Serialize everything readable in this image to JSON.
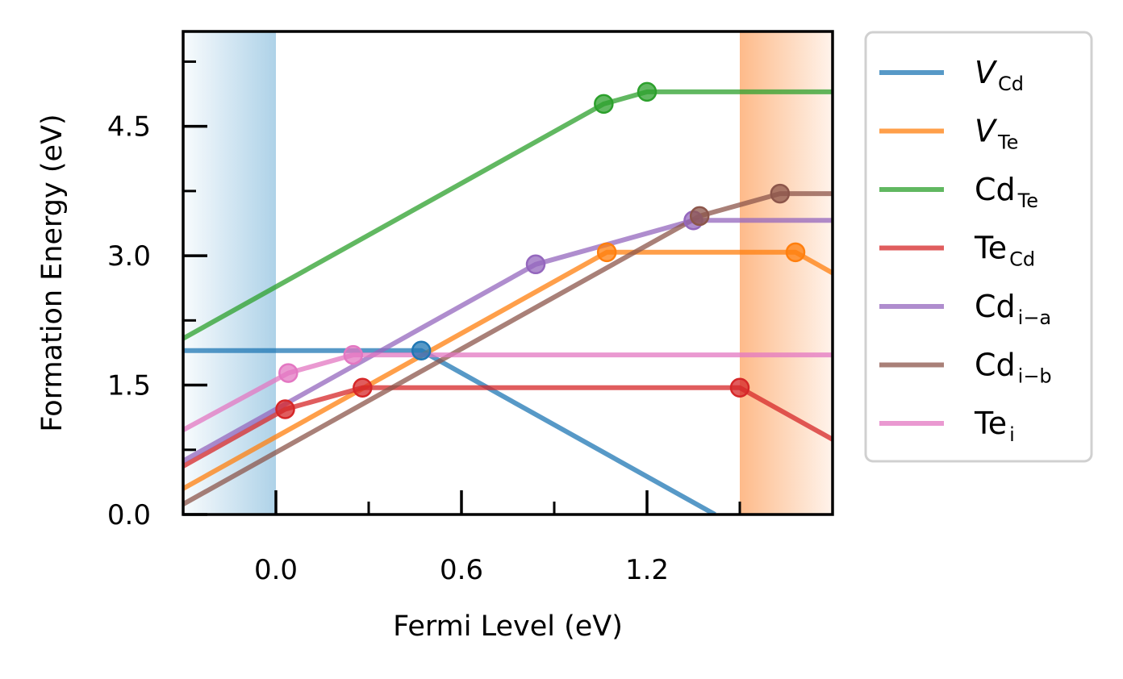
{
  "chart_data": {
    "type": "line",
    "title": "",
    "xlabel": "Fermi Level (eV)",
    "ylabel": "Formation Energy (eV)",
    "xlim": [
      -0.3,
      1.8
    ],
    "ylim": [
      0.0,
      5.6
    ],
    "xticks": [
      {
        "value": 0.0,
        "label": "0.0"
      },
      {
        "value": 0.6,
        "label": "0.6"
      },
      {
        "value": 1.2,
        "label": "1.2"
      }
    ],
    "yticks": [
      {
        "value": 0.0,
        "label": "0.0"
      },
      {
        "value": 1.5,
        "label": "1.5"
      },
      {
        "value": 3.0,
        "label": "3.0"
      },
      {
        "value": 4.5,
        "label": "4.5"
      }
    ],
    "minor_xticks": [
      0.3,
      0.9,
      1.5
    ],
    "minor_yticks": [
      0.75,
      2.25,
      3.75,
      5.25
    ],
    "grid": false,
    "legend_position": "outside-right",
    "shaded_regions": [
      {
        "name": "valence-band",
        "x0": -0.3,
        "x1": 0.0,
        "color": "#5da5d1",
        "fade": "left"
      },
      {
        "name": "conduction-band",
        "x0": 1.5,
        "x1": 1.8,
        "color": "#fd8d3c",
        "fade": "right"
      }
    ],
    "series": [
      {
        "key": "v_cd",
        "name": "V",
        "name_style": "italic",
        "subscript": "Cd",
        "color": "#1f77b4",
        "points": [
          [
            -0.3,
            1.9
          ],
          [
            0.47,
            1.9
          ],
          [
            1.42,
            0.0
          ]
        ],
        "markers": [
          [
            0.47,
            1.9
          ]
        ]
      },
      {
        "key": "v_te",
        "name": "V",
        "name_style": "italic",
        "subscript": "Te",
        "color": "#ff7f0e",
        "points": [
          [
            -0.3,
            0.3
          ],
          [
            1.07,
            3.04
          ],
          [
            1.68,
            3.04
          ],
          [
            1.8,
            2.8
          ]
        ],
        "markers": [
          [
            1.07,
            3.04
          ],
          [
            1.68,
            3.04
          ]
        ]
      },
      {
        "key": "cd_te",
        "name": "Cd",
        "name_style": "normal",
        "subscript": "Te",
        "color": "#2ca02c",
        "points": [
          [
            -0.3,
            2.04
          ],
          [
            1.06,
            4.76
          ],
          [
            1.2,
            4.9
          ],
          [
            1.8,
            4.9
          ]
        ],
        "markers": [
          [
            1.06,
            4.76
          ],
          [
            1.2,
            4.9
          ]
        ]
      },
      {
        "key": "te_cd",
        "name": "Te",
        "name_style": "normal",
        "subscript": "Cd",
        "color": "#d62728",
        "points": [
          [
            -0.3,
            0.56
          ],
          [
            0.03,
            1.22
          ],
          [
            0.28,
            1.47
          ],
          [
            1.5,
            1.47
          ],
          [
            1.8,
            0.87
          ]
        ],
        "markers": [
          [
            0.03,
            1.22
          ],
          [
            0.28,
            1.47
          ],
          [
            1.5,
            1.47
          ]
        ]
      },
      {
        "key": "cd_i_a",
        "name": "Cd",
        "name_style": "normal",
        "subscript": "i−a",
        "color": "#9467bd",
        "points": [
          [
            -0.3,
            0.62
          ],
          [
            0.84,
            2.9
          ],
          [
            1.35,
            3.41
          ],
          [
            1.8,
            3.41
          ]
        ],
        "markers": [
          [
            0.84,
            2.9
          ],
          [
            1.35,
            3.41
          ]
        ]
      },
      {
        "key": "cd_i_b",
        "name": "Cd",
        "name_style": "normal",
        "subscript": "i−b",
        "color": "#8c564b",
        "points": [
          [
            -0.3,
            0.12
          ],
          [
            1.37,
            3.46
          ],
          [
            1.63,
            3.72
          ],
          [
            1.8,
            3.72
          ]
        ],
        "markers": [
          [
            1.37,
            3.46
          ],
          [
            1.63,
            3.72
          ]
        ]
      },
      {
        "key": "te_i",
        "name": "Te",
        "name_style": "normal",
        "subscript": "i",
        "color": "#e377c2",
        "points": [
          [
            -0.3,
            0.98
          ],
          [
            0.04,
            1.64
          ],
          [
            0.25,
            1.85
          ],
          [
            1.8,
            1.85
          ]
        ],
        "markers": [
          [
            0.04,
            1.64
          ],
          [
            0.25,
            1.85
          ]
        ]
      }
    ]
  }
}
